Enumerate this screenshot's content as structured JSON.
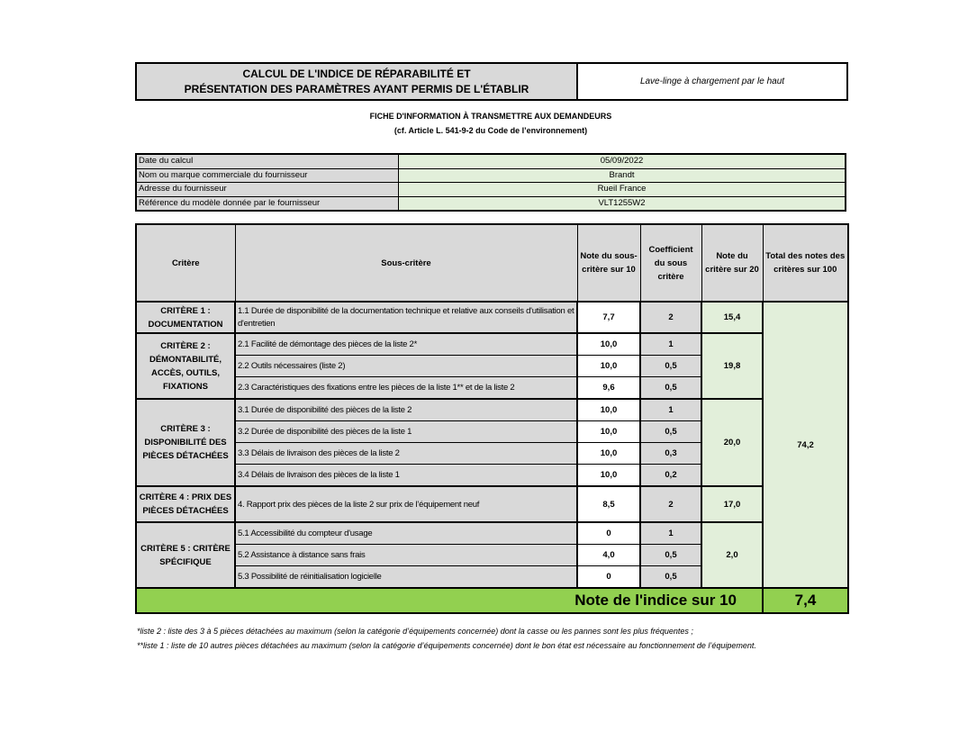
{
  "header": {
    "title_line1": "CALCUL DE L'INDICE DE RÉPARABILITÉ ET",
    "title_line2": "PRÉSENTATION DES PARAMÈTRES AYANT PERMIS DE L'ÉTABLIR",
    "product": "Lave-linge à chargement par le haut"
  },
  "subtitle": {
    "line1": "FICHE D'INFORMATION À TRANSMETTRE AUX DEMANDEURS",
    "line2": "(cf. Article L. 541-9-2 du Code de l’environnement)"
  },
  "info": [
    {
      "label": "Date du calcul",
      "value": "05/09/2022"
    },
    {
      "label": "Nom ou marque commerciale du fournisseur",
      "value": "Brandt"
    },
    {
      "label": "Adresse du fournisseur",
      "value": "Rueil France"
    },
    {
      "label": "Référence du modèle donnée par le fournisseur",
      "value": "VLT1255W2"
    }
  ],
  "table": {
    "headers": [
      "Critère",
      "Sous-critère",
      "Note du sous-critère sur 10",
      "Coefficient du sous critère",
      "Note du critère sur 20",
      "Total des notes des critères sur 100"
    ],
    "criteria": [
      {
        "name": "CRITÈRE 1 : DOCUMENTATION",
        "score": "15,4",
        "subs": [
          {
            "label": "1.1 Durée de disponibilité de la documentation technique et relative aux conseils d'utilisation et d'entretien",
            "note": "7,7",
            "coef": "2"
          }
        ]
      },
      {
        "name": "CRITÈRE 2 : DÉMONTABILITÉ, ACCÈS, OUTILS, FIXATIONS",
        "score": "19,8",
        "subs": [
          {
            "label": "2.1 Facilité de démontage des pièces de la liste 2*",
            "note": "10,0",
            "coef": "1"
          },
          {
            "label": "2.2 Outils nécessaires (liste 2)",
            "note": "10,0",
            "coef": "0,5"
          },
          {
            "label": "2.3 Caractéristiques des fixations entre les pièces de la liste 1** et de la liste 2",
            "note": "9,6",
            "coef": "0,5"
          }
        ]
      },
      {
        "name": "CRITÈRE 3 : DISPONIBILITÉ DES PIÈCES DÉTACHÉES",
        "score": "20,0",
        "subs": [
          {
            "label": "3.1 Durée de disponibilité des pièces de la liste 2",
            "note": "10,0",
            "coef": "1"
          },
          {
            "label": "3.2 Durée de disponibilité des pièces de la liste 1",
            "note": "10,0",
            "coef": "0,5"
          },
          {
            "label": "3.3 Délais de livraison des pièces de la liste 2",
            "note": "10,0",
            "coef": "0,3"
          },
          {
            "label": "3.4 Délais de livraison des pièces de la liste 1",
            "note": "10,0",
            "coef": "0,2"
          }
        ]
      },
      {
        "name": "CRITÈRE 4 : PRIX DES PIÈCES DÉTACHÉES",
        "score": "17,0",
        "subs": [
          {
            "label": "4. Rapport prix des pièces de la liste 2 sur prix de l’équipement neuf",
            "note": "8,5",
            "coef": "2"
          }
        ]
      },
      {
        "name": "CRITÈRE 5 : CRITÈRE SPÉCIFIQUE",
        "score": "2,0",
        "subs": [
          {
            "label": "5.1 Accessibilité du compteur d'usage",
            "note": "0",
            "coef": "1"
          },
          {
            "label": "5.2 Assistance à distance sans frais",
            "note": "4,0",
            "coef": "0,5"
          },
          {
            "label": "5.3 Possibilité de réinitialisation logicielle",
            "note": "0",
            "coef": "0,5"
          }
        ]
      }
    ],
    "total": "74,2",
    "final_label": "Note de l'indice sur 10",
    "final_value": "7,4"
  },
  "footnotes": [
    "*liste 2 : liste des 3 à 5 pièces détachées au maximum (selon la catégorie d’équipements concernée) dont la casse ou les pannes sont les plus fréquentes ;",
    "**liste 1 : liste de 10 autres pièces détachées au maximum (selon la catégorie d’équipements concernée) dont le bon état est nécessaire au fonctionnement de l’équipement."
  ],
  "colors": {
    "label_gray": "#d9d9d9",
    "value_green": "#e2efda",
    "final_green": "#92d050"
  }
}
